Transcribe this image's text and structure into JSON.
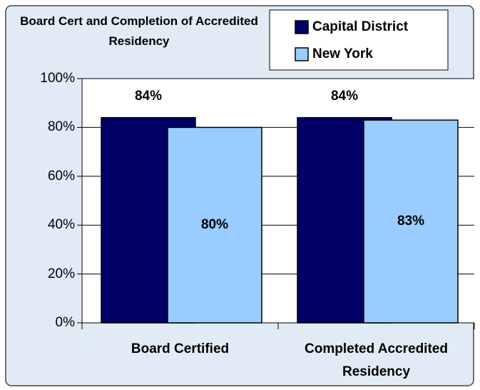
{
  "chart_data": {
    "type": "bar",
    "title": "Board Cert and Completion of Accredited Residency",
    "categories": [
      "Board Certified",
      "Completed Accredited Residency"
    ],
    "series": [
      {
        "name": "Capital District",
        "color": "#000066",
        "values": [
          84,
          84
        ],
        "value_labels": [
          "84%",
          "84%"
        ]
      },
      {
        "name": "New York",
        "color": "#99ccff",
        "values": [
          80,
          83
        ],
        "value_labels": [
          "80%",
          "83%"
        ]
      }
    ],
    "ylim": [
      0,
      100
    ],
    "yticks": [
      {
        "value": 0,
        "label": "0%"
      },
      {
        "value": 20,
        "label": "20%"
      },
      {
        "value": 40,
        "label": "40%"
      },
      {
        "value": 60,
        "label": "60%"
      },
      {
        "value": 80,
        "label": "80%"
      },
      {
        "value": 100,
        "label": "100%"
      }
    ],
    "grid": true
  }
}
